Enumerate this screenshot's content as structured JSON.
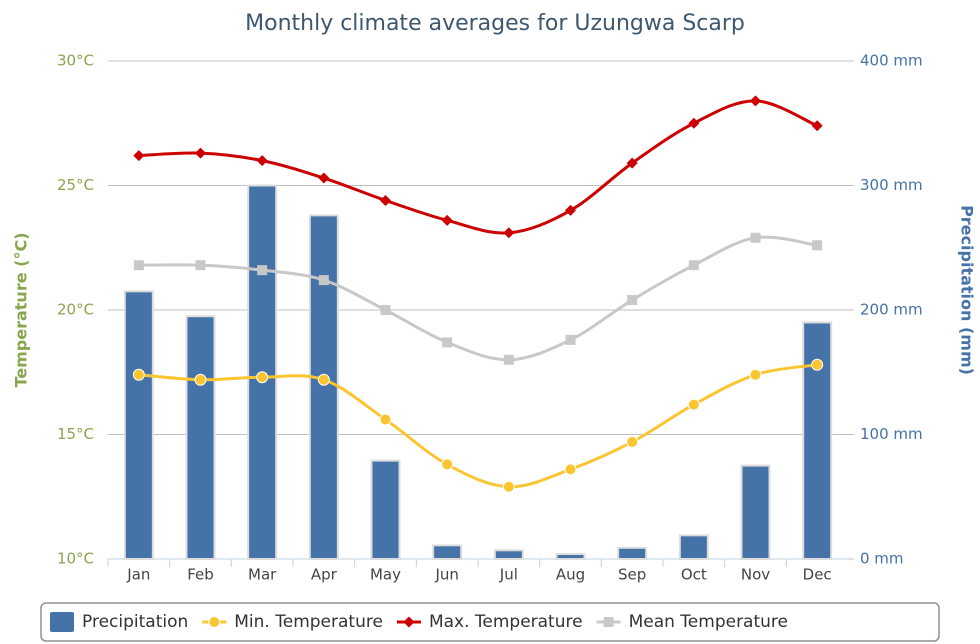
{
  "chart_data": {
    "type": "combo",
    "title": "Monthly climate averages for Uzungwa Scarp",
    "categories": [
      "Jan",
      "Feb",
      "Mar",
      "Apr",
      "May",
      "Jun",
      "Jul",
      "Aug",
      "Sep",
      "Oct",
      "Nov",
      "Dec"
    ],
    "ylabel": "Temperature (°C)",
    "y2label": "Precipitation (mm)",
    "ylim": [
      10,
      30
    ],
    "yticks": [
      {
        "value": 10,
        "label": "10°C"
      },
      {
        "value": 15,
        "label": "15°C"
      },
      {
        "value": 20,
        "label": "20°C"
      },
      {
        "value": 25,
        "label": "25°C"
      },
      {
        "value": 30,
        "label": "30°C"
      }
    ],
    "y2lim": [
      0,
      400
    ],
    "y2ticks": [
      {
        "value": 0,
        "label": "0 mm"
      },
      {
        "value": 100,
        "label": "100 mm"
      },
      {
        "value": 200,
        "label": "200 mm"
      },
      {
        "value": 300,
        "label": "300 mm"
      },
      {
        "value": 400,
        "label": "400 mm"
      }
    ],
    "grid": true,
    "legend": "bottom",
    "series": [
      {
        "name": "Precipitation",
        "type": "bar",
        "axis": "y2",
        "color": "#4572a7",
        "values": [
          215,
          195,
          300,
          276,
          79,
          11,
          7,
          4,
          9,
          19,
          75,
          190
        ]
      },
      {
        "name": "Min. Temperature",
        "type": "line",
        "marker": "circle",
        "color": "#fbc532",
        "values": [
          17.4,
          17.2,
          17.3,
          17.2,
          15.6,
          13.8,
          12.9,
          13.6,
          14.7,
          16.2,
          17.4,
          17.8
        ]
      },
      {
        "name": "Max. Temperature",
        "type": "line",
        "marker": "diamond",
        "color": "#cc0000",
        "values": [
          26.2,
          26.3,
          26.0,
          25.3,
          24.4,
          23.6,
          23.1,
          24.0,
          25.9,
          27.5,
          28.4,
          27.4
        ]
      },
      {
        "name": "Mean Temperature",
        "type": "line",
        "marker": "square",
        "color": "#c8c8c8",
        "values": [
          21.8,
          21.8,
          21.6,
          21.2,
          20.0,
          18.7,
          18.0,
          18.8,
          20.4,
          21.8,
          22.9,
          22.6
        ]
      }
    ]
  }
}
